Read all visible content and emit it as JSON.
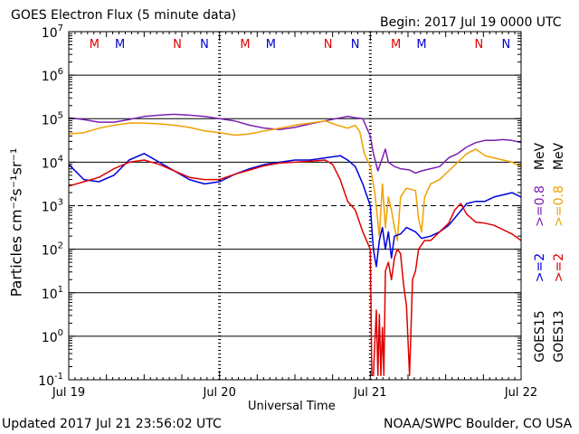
{
  "header": {
    "title": "GOES Electron Flux (5 minute data)",
    "begin": "Begin: 2017 Jul 19 0000 UTC"
  },
  "footer": {
    "updated": "Updated 2017 Jul 21 23:56:02 UTC",
    "credit": "NOAA/SWPC Boulder, CO USA"
  },
  "chart_data": {
    "type": "line",
    "title": "GOES Electron Flux (5 minute data)",
    "xlabel": "Universal Time",
    "ylabel": "Particles cm⁻²s⁻¹sr⁻¹",
    "yscale": "log",
    "ylim_exponent": [
      -1,
      7
    ],
    "ytick_exponents": [
      -1,
      0,
      1,
      2,
      3,
      4,
      5,
      6,
      7
    ],
    "xlim_days": [
      0,
      3
    ],
    "xtick_labels": [
      "Jul 19",
      "Jul 20",
      "Jul 21",
      "Jul 22"
    ],
    "reference_line_exponent": 3,
    "legend": {
      "gt2": ">=2",
      "gt08": ">=0.8",
      "mev": "MeV",
      "goes15": "GOES15",
      "goes13": "GOES13"
    },
    "markers": [
      {
        "label": "M",
        "day": 0.17,
        "color": "#dd0000"
      },
      {
        "label": "M",
        "day": 0.34,
        "color": "#0000cc"
      },
      {
        "label": "N",
        "day": 0.72,
        "color": "#dd0000"
      },
      {
        "label": "N",
        "day": 0.9,
        "color": "#0000cc"
      },
      {
        "label": "M",
        "day": 1.17,
        "color": "#dd0000"
      },
      {
        "label": "M",
        "day": 1.34,
        "color": "#0000cc"
      },
      {
        "label": "N",
        "day": 1.72,
        "color": "#dd0000"
      },
      {
        "label": "N",
        "day": 1.9,
        "color": "#0000cc"
      },
      {
        "label": "M",
        "day": 2.17,
        "color": "#dd0000"
      },
      {
        "label": "M",
        "day": 2.34,
        "color": "#0000cc"
      },
      {
        "label": "N",
        "day": 2.72,
        "color": "#dd0000"
      },
      {
        "label": "N",
        "day": 2.9,
        "color": "#0000cc"
      }
    ],
    "series": [
      {
        "name": "GOES15 >=0.8 MeV",
        "color": "#7a1fb0",
        "points": [
          [
            0,
            5.02
          ],
          [
            0.1,
            4.98
          ],
          [
            0.2,
            4.92
          ],
          [
            0.3,
            4.92
          ],
          [
            0.4,
            4.98
          ],
          [
            0.5,
            5.05
          ],
          [
            0.6,
            5.08
          ],
          [
            0.7,
            5.1
          ],
          [
            0.8,
            5.08
          ],
          [
            0.9,
            5.05
          ],
          [
            1.0,
            5.0
          ],
          [
            1.1,
            4.95
          ],
          [
            1.2,
            4.85
          ],
          [
            1.3,
            4.78
          ],
          [
            1.4,
            4.75
          ],
          [
            1.5,
            4.8
          ],
          [
            1.6,
            4.88
          ],
          [
            1.7,
            4.95
          ],
          [
            1.8,
            5.02
          ],
          [
            1.85,
            5.05
          ],
          [
            1.9,
            5.02
          ],
          [
            1.95,
            5.0
          ],
          [
            2.0,
            4.6
          ],
          [
            2.02,
            4.2
          ],
          [
            2.05,
            3.8
          ],
          [
            2.08,
            4.1
          ],
          [
            2.1,
            4.3
          ],
          [
            2.12,
            4.0
          ],
          [
            2.16,
            3.9
          ],
          [
            2.2,
            3.85
          ],
          [
            2.26,
            3.82
          ],
          [
            2.3,
            3.75
          ],
          [
            2.34,
            3.8
          ],
          [
            2.4,
            3.85
          ],
          [
            2.46,
            3.9
          ],
          [
            2.52,
            4.1
          ],
          [
            2.58,
            4.2
          ],
          [
            2.64,
            4.35
          ],
          [
            2.7,
            4.45
          ],
          [
            2.76,
            4.5
          ],
          [
            2.82,
            4.5
          ],
          [
            2.88,
            4.52
          ],
          [
            2.94,
            4.5
          ],
          [
            3.0,
            4.45
          ]
        ]
      },
      {
        "name": "GOES13 >=0.8 MeV",
        "color": "#f0a000",
        "points": [
          [
            0,
            4.65
          ],
          [
            0.1,
            4.68
          ],
          [
            0.2,
            4.78
          ],
          [
            0.3,
            4.85
          ],
          [
            0.4,
            4.9
          ],
          [
            0.5,
            4.9
          ],
          [
            0.6,
            4.88
          ],
          [
            0.7,
            4.85
          ],
          [
            0.8,
            4.8
          ],
          [
            0.9,
            4.72
          ],
          [
            1.0,
            4.68
          ],
          [
            1.1,
            4.62
          ],
          [
            1.2,
            4.65
          ],
          [
            1.3,
            4.72
          ],
          [
            1.4,
            4.78
          ],
          [
            1.5,
            4.85
          ],
          [
            1.6,
            4.9
          ],
          [
            1.7,
            4.95
          ],
          [
            1.78,
            4.85
          ],
          [
            1.85,
            4.78
          ],
          [
            1.9,
            4.85
          ],
          [
            1.93,
            4.7
          ],
          [
            1.96,
            4.2
          ],
          [
            2.0,
            3.9
          ],
          [
            2.03,
            3.3
          ],
          [
            2.06,
            2.3
          ],
          [
            2.08,
            3.5
          ],
          [
            2.1,
            2.5
          ],
          [
            2.12,
            3.2
          ],
          [
            2.14,
            2.9
          ],
          [
            2.16,
            2.5
          ],
          [
            2.18,
            2.2
          ],
          [
            2.2,
            3.2
          ],
          [
            2.24,
            3.4
          ],
          [
            2.3,
            3.35
          ],
          [
            2.32,
            2.7
          ],
          [
            2.34,
            2.4
          ],
          [
            2.36,
            3.2
          ],
          [
            2.4,
            3.5
          ],
          [
            2.46,
            3.6
          ],
          [
            2.52,
            3.8
          ],
          [
            2.58,
            4.0
          ],
          [
            2.64,
            4.2
          ],
          [
            2.7,
            4.3
          ],
          [
            2.76,
            4.15
          ],
          [
            2.82,
            4.1
          ],
          [
            2.88,
            4.05
          ],
          [
            2.94,
            4.0
          ],
          [
            3.0,
            3.9
          ]
        ]
      },
      {
        "name": "GOES15 >=2 MeV",
        "color": "#0000dd",
        "points": [
          [
            0,
            3.95
          ],
          [
            0.1,
            3.6
          ],
          [
            0.2,
            3.55
          ],
          [
            0.3,
            3.7
          ],
          [
            0.4,
            4.05
          ],
          [
            0.5,
            4.2
          ],
          [
            0.6,
            4.0
          ],
          [
            0.7,
            3.8
          ],
          [
            0.8,
            3.6
          ],
          [
            0.9,
            3.5
          ],
          [
            1.0,
            3.55
          ],
          [
            1.1,
            3.72
          ],
          [
            1.2,
            3.85
          ],
          [
            1.3,
            3.95
          ],
          [
            1.4,
            4.0
          ],
          [
            1.5,
            4.05
          ],
          [
            1.6,
            4.05
          ],
          [
            1.7,
            4.1
          ],
          [
            1.8,
            4.15
          ],
          [
            1.85,
            4.05
          ],
          [
            1.9,
            3.9
          ],
          [
            1.95,
            3.5
          ],
          [
            2.0,
            3.0
          ],
          [
            2.02,
            2.0
          ],
          [
            2.04,
            1.6
          ],
          [
            2.06,
            2.2
          ],
          [
            2.08,
            2.5
          ],
          [
            2.1,
            2.0
          ],
          [
            2.12,
            2.4
          ],
          [
            2.14,
            1.8
          ],
          [
            2.16,
            2.3
          ],
          [
            2.2,
            2.35
          ],
          [
            2.24,
            2.5
          ],
          [
            2.3,
            2.4
          ],
          [
            2.34,
            2.25
          ],
          [
            2.4,
            2.3
          ],
          [
            2.46,
            2.4
          ],
          [
            2.52,
            2.55
          ],
          [
            2.58,
            2.8
          ],
          [
            2.64,
            3.05
          ],
          [
            2.7,
            3.1
          ],
          [
            2.76,
            3.1
          ],
          [
            2.82,
            3.2
          ],
          [
            2.88,
            3.25
          ],
          [
            2.94,
            3.3
          ],
          [
            3.0,
            3.2
          ]
        ]
      },
      {
        "name": "GOES13 >=2 MeV",
        "color": "#dd0000",
        "points": [
          [
            0,
            3.45
          ],
          [
            0.1,
            3.55
          ],
          [
            0.2,
            3.65
          ],
          [
            0.3,
            3.85
          ],
          [
            0.4,
            4.0
          ],
          [
            0.5,
            4.05
          ],
          [
            0.6,
            3.95
          ],
          [
            0.7,
            3.8
          ],
          [
            0.8,
            3.65
          ],
          [
            0.9,
            3.6
          ],
          [
            1.0,
            3.6
          ],
          [
            1.1,
            3.72
          ],
          [
            1.2,
            3.82
          ],
          [
            1.3,
            3.92
          ],
          [
            1.4,
            3.98
          ],
          [
            1.5,
            4.0
          ],
          [
            1.6,
            4.02
          ],
          [
            1.7,
            4.05
          ],
          [
            1.75,
            3.95
          ],
          [
            1.8,
            3.6
          ],
          [
            1.85,
            3.1
          ],
          [
            1.9,
            2.9
          ],
          [
            1.95,
            2.4
          ],
          [
            2.0,
            2.0
          ],
          [
            2.01,
            -0.9
          ],
          [
            2.02,
            -0.9
          ],
          [
            2.04,
            0.6
          ],
          [
            2.05,
            -0.9
          ],
          [
            2.06,
            0.5
          ],
          [
            2.07,
            -0.9
          ],
          [
            2.08,
            0.2
          ],
          [
            2.09,
            -0.9
          ],
          [
            2.1,
            1.5
          ],
          [
            2.12,
            1.7
          ],
          [
            2.14,
            1.3
          ],
          [
            2.16,
            1.8
          ],
          [
            2.18,
            2.0
          ],
          [
            2.2,
            1.9
          ],
          [
            2.22,
            1.2
          ],
          [
            2.24,
            0.7
          ],
          [
            2.26,
            -0.9
          ],
          [
            2.28,
            1.3
          ],
          [
            2.3,
            1.5
          ],
          [
            2.32,
            2.0
          ],
          [
            2.36,
            2.2
          ],
          [
            2.4,
            2.2
          ],
          [
            2.46,
            2.4
          ],
          [
            2.52,
            2.6
          ],
          [
            2.56,
            2.9
          ],
          [
            2.6,
            3.05
          ],
          [
            2.64,
            2.8
          ],
          [
            2.7,
            2.62
          ],
          [
            2.76,
            2.6
          ],
          [
            2.82,
            2.55
          ],
          [
            2.88,
            2.45
          ],
          [
            2.94,
            2.35
          ],
          [
            3.0,
            2.2
          ]
        ]
      }
    ]
  }
}
